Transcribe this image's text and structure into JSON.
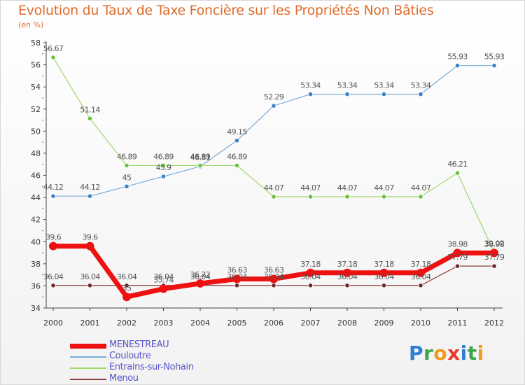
{
  "title": "Evolution du Taux de Taxe Foncière sur les Propriétés Non Bâties",
  "unit_label": "(en %)",
  "logo": {
    "letters": [
      "P",
      "r",
      "o",
      "x",
      "i",
      "t",
      "i"
    ],
    "colors": [
      "#2f7fd6",
      "#3aa84a",
      "#f29a1f",
      "#e83a2c",
      "#2f7fd6",
      "#3aa84a",
      "#f29a1f"
    ]
  },
  "chart_data": {
    "type": "line",
    "x": [
      "2000",
      "2001",
      "2002",
      "2003",
      "2004",
      "2005",
      "2006",
      "2007",
      "2008",
      "2009",
      "2010",
      "2011",
      "2012"
    ],
    "ylim": [
      34,
      58
    ],
    "yticks": [
      "34",
      "36",
      "38",
      "40",
      "42",
      "44",
      "46",
      "48",
      "50",
      "52",
      "54",
      "56",
      "58"
    ],
    "grid": false,
    "legend_position": "bottom-left",
    "series": [
      {
        "name": "Couloutre",
        "color": "#7aaad8",
        "marker": "#3b82c8",
        "width": 1.2,
        "values": [
          44.12,
          44.12,
          45,
          45.9,
          46.81,
          49.15,
          52.29,
          53.34,
          53.34,
          53.34,
          53.34,
          55.93,
          55.93
        ],
        "labels": [
          "44.12",
          "44.12",
          "45",
          "45.9",
          "46.81",
          "49.15",
          "52.29",
          "53.34",
          "53.34",
          "53.34",
          "53.34",
          "55.93",
          "55.93"
        ]
      },
      {
        "name": "Entrains-sur-Nohain",
        "color": "#9ed868",
        "marker": "#6cc03a",
        "width": 1.2,
        "values": [
          56.67,
          51.14,
          46.89,
          46.89,
          46.89,
          46.89,
          44.07,
          44.07,
          44.07,
          44.07,
          44.07,
          46.21,
          39.02
        ],
        "labels": [
          "56.67",
          "51.14",
          "46.89",
          "46.89",
          "46.89",
          "46.89",
          "44.07",
          "44.07",
          "44.07",
          "44.07",
          "44.07",
          "46.21",
          "39.02"
        ]
      },
      {
        "name": "Menou",
        "color": "#8a4040",
        "marker": "#6e2a2a",
        "width": 1.2,
        "values": [
          36.04,
          36.04,
          36.04,
          36.04,
          36.04,
          36.04,
          36.04,
          36.04,
          36.04,
          36.04,
          36.04,
          37.79,
          37.79
        ],
        "labels": [
          "36.04",
          "36.04",
          "36.04",
          "36.04",
          "36.04",
          "36.04",
          "36.04",
          "36.04",
          "36.04",
          "36.04",
          "36.04",
          "37.79",
          "37.79"
        ]
      },
      {
        "name": "MENESTREAU",
        "color": "#ee1111",
        "marker": "#ee1111",
        "width": 7,
        "values": [
          39.6,
          39.6,
          35,
          35.74,
          36.22,
          36.63,
          36.63,
          37.18,
          37.18,
          37.18,
          37.18,
          38.98,
          38.98
        ],
        "labels": [
          "39.6",
          "39.6",
          "35",
          "35.74",
          "36.22",
          "36.63",
          "36.63",
          "37.18",
          "37.18",
          "37.18",
          "37.18",
          "38.98",
          "38.98"
        ]
      }
    ]
  },
  "legend": [
    {
      "name": "MENESTREAU",
      "color": "#ee1111",
      "width": 7
    },
    {
      "name": "Couloutre",
      "color": "#7aaad8",
      "width": 2
    },
    {
      "name": "Entrains-sur-Nohain",
      "color": "#9ed868",
      "width": 2
    },
    {
      "name": "Menou",
      "color": "#8a4040",
      "width": 2
    }
  ]
}
